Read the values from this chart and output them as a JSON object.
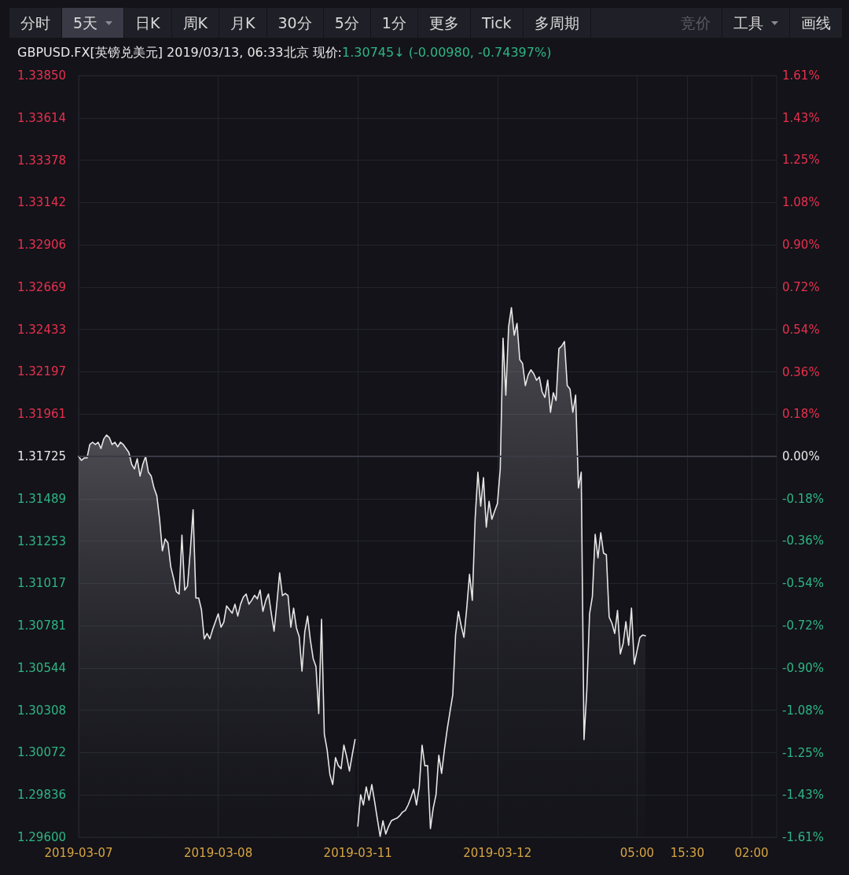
{
  "chart_data": {
    "type": "area",
    "title": "GBPUSD.FX[英镑兑美元]  2019/03/13, 06:33北京 现价:",
    "subtitle": "1.30745↓ (-0.00980, -0.74397%)",
    "annotations": [
      "分时",
      "5天",
      "日K",
      "周K",
      "月K",
      "30分",
      "5分",
      "1分",
      "更多",
      "Tick",
      "多周期",
      "竞价",
      "工具",
      "画线"
    ],
    "categories": [
      "2019-03-07",
      null,
      null,
      null,
      null,
      null,
      null,
      null,
      null,
      null,
      null,
      null,
      null,
      null,
      null,
      null,
      null,
      null,
      null,
      null,
      null,
      null,
      null,
      null,
      null,
      null,
      null,
      null,
      null,
      null,
      null,
      null,
      null,
      null,
      null,
      null,
      null,
      null,
      null,
      null,
      null,
      null,
      null,
      null,
      null,
      null,
      null,
      null,
      null,
      null,
      "2019-03-08",
      null,
      null,
      null,
      null,
      null,
      null,
      null,
      null,
      null,
      null,
      null,
      null,
      null,
      null,
      null,
      null,
      null,
      null,
      null,
      null,
      null,
      null,
      null,
      null,
      null,
      null,
      null,
      null,
      null,
      null,
      null,
      null,
      null,
      null,
      null,
      null,
      null,
      null,
      null,
      null,
      null,
      null,
      null,
      null,
      null,
      null,
      null,
      null,
      null,
      "2019-03-11",
      null,
      null,
      null,
      null,
      null,
      null,
      null,
      null,
      null,
      null,
      null,
      null,
      null,
      null,
      null,
      null,
      null,
      null,
      null,
      null,
      null,
      null,
      null,
      null,
      null,
      null,
      null,
      null,
      null,
      null,
      null,
      null,
      null,
      null,
      null,
      null,
      null,
      null,
      null,
      null,
      null,
      null,
      null,
      null,
      null,
      null,
      null,
      null,
      null,
      "2019-03-12",
      null,
      null,
      null,
      null,
      null,
      null,
      null,
      null,
      null,
      null,
      null,
      null,
      null,
      null,
      null,
      null,
      null,
      null,
      null,
      null,
      null,
      null,
      null,
      null,
      null,
      null,
      null,
      null,
      null,
      null,
      null,
      null,
      null,
      null,
      null,
      null,
      null,
      null,
      null,
      null,
      null,
      null,
      null,
      null,
      null,
      null,
      null,
      null,
      null,
      "05:00",
      null,
      null,
      null,
      null,
      null,
      null,
      null,
      null,
      null,
      null,
      null,
      null,
      null,
      null,
      null,
      null,
      null,
      "15:30",
      null,
      null,
      null,
      null,
      null,
      null,
      null,
      null,
      null,
      null,
      null,
      null,
      null,
      null,
      null,
      null,
      null,
      null,
      null,
      null,
      null,
      null,
      "02:00",
      null,
      null,
      null,
      null,
      null,
      null,
      null,
      null,
      null
    ],
    "series": [
      {
        "color": "#e6e6e6",
        "values": [
          1.31725,
          1.31703,
          1.31716,
          1.31716,
          1.31791,
          1.31804,
          1.31791,
          1.31804,
          1.31769,
          1.31822,
          1.31844,
          1.3183,
          1.31791,
          1.31804,
          1.31778,
          1.31804,
          1.31791,
          1.31769,
          1.31747,
          1.31681,
          1.31655,
          1.31712,
          1.31615,
          1.31681,
          1.31725,
          1.31637,
          1.31615,
          1.31549,
          1.31506,
          1.31374,
          1.31198,
          1.31264,
          1.31242,
          1.3111,
          1.31045,
          1.3097,
          1.30957,
          1.31286,
          1.30979,
          1.31001,
          1.31198,
          1.31427,
          1.30935,
          1.30935,
          1.30869,
          1.30707,
          1.30737,
          1.30707,
          1.30759,
          1.30803,
          1.30847,
          1.30772,
          1.308,
          1.30891,
          1.3087,
          1.3085,
          1.309,
          1.30834,
          1.309,
          1.3094,
          1.30957,
          1.309,
          1.30922,
          1.3095,
          1.3093,
          1.30979,
          1.3086,
          1.3092,
          1.30957,
          1.3085,
          1.3075,
          1.30904,
          1.31075,
          1.30948,
          1.3096,
          1.30948,
          1.30772,
          1.30878,
          1.30768,
          1.3072,
          1.30527,
          1.30746,
          1.30834,
          1.307,
          1.30597,
          1.30553,
          1.3029,
          1.30816,
          1.30175,
          1.30088,
          1.2995,
          1.29894,
          1.30044,
          1.3,
          1.29982,
          1.30114,
          1.3005,
          1.29969,
          1.3006,
          1.30145,
          null,
          null,
          null,
          null,
          null,
          null,
          null,
          null,
          null,
          null,
          null,
          null,
          null,
          null,
          null,
          null,
          null,
          null,
          null,
          null,
          null,
          null,
          null,
          null,
          null,
          null,
          null,
          null,
          null,
          null,
          null,
          null,
          null,
          null,
          null,
          null,
          null,
          null,
          null,
          null,
          null,
          null,
          null,
          null,
          null,
          null,
          null,
          null,
          null,
          null,
          null,
          null,
          null,
          null,
          null,
          null,
          null,
          null,
          null,
          null,
          null,
          null,
          null,
          null,
          null,
          null,
          null,
          null,
          null,
          null,
          null,
          null,
          null,
          null,
          null,
          null,
          null,
          null,
          null,
          null,
          null,
          null,
          null,
          null,
          null,
          null,
          null,
          null,
          null,
          null,
          null,
          null,
          null,
          null,
          null,
          null,
          null,
          null,
          null,
          null,
          null,
          null,
          null,
          null,
          null,
          null,
          null,
          null,
          null,
          null,
          null,
          null,
          null,
          null,
          null,
          null,
          null,
          null,
          null,
          null,
          null,
          null,
          null,
          null,
          null,
          null,
          null,
          null,
          null,
          null,
          null,
          null,
          null,
          null,
          null,
          null,
          null,
          null,
          null,
          null,
          null,
          null,
          null,
          null,
          null,
          null,
          null,
          null,
          null,
          null,
          null
        ]
      },
      {
        "color": "#e6e6e6",
        "values": [
          null,
          null,
          null,
          null,
          null,
          null,
          null,
          null,
          null,
          null,
          null,
          null,
          null,
          null,
          null,
          null,
          null,
          null,
          null,
          null,
          null,
          null,
          null,
          null,
          null,
          null,
          null,
          null,
          null,
          null,
          null,
          null,
          null,
          null,
          null,
          null,
          null,
          null,
          null,
          null,
          null,
          null,
          null,
          null,
          null,
          null,
          null,
          null,
          null,
          null,
          null,
          null,
          null,
          null,
          null,
          null,
          null,
          null,
          null,
          null,
          null,
          null,
          null,
          null,
          null,
          null,
          null,
          null,
          null,
          null,
          null,
          null,
          null,
          null,
          null,
          null,
          null,
          null,
          null,
          null,
          null,
          null,
          null,
          null,
          null,
          null,
          null,
          null,
          null,
          null,
          null,
          null,
          null,
          null,
          null,
          null,
          null,
          null,
          null,
          null,
          1.29662,
          1.29837,
          1.2978,
          1.29881,
          1.29807,
          1.29894,
          1.298,
          1.297,
          1.29605,
          1.29692,
          1.29618,
          1.2966,
          1.29692,
          1.297,
          1.29706,
          1.2972,
          1.2974,
          1.2975,
          1.2978,
          1.2982,
          1.29868,
          1.2978,
          1.29881,
          1.30114,
          1.29999,
          1.29999,
          1.29648,
          1.29763,
          1.29837,
          1.30057,
          1.29956,
          1.30088,
          1.30202,
          1.303,
          1.30395,
          1.30728,
          1.3086,
          1.3078,
          1.30715,
          1.30878,
          1.31067,
          1.30922,
          1.31374,
          1.31637,
          1.31448,
          1.31606,
          1.3133,
          1.31475,
          1.31374,
          1.3142,
          1.31462,
          1.31655,
          1.32384,
          1.32067,
          1.32449,
          1.32555,
          1.32401,
          1.32467,
          1.32265,
          1.32243,
          1.3212,
          1.3218,
          1.32208,
          1.32186,
          1.3215,
          1.32168,
          1.32085,
          1.32054,
          1.32151,
          1.31971,
          1.3208,
          1.32037,
          1.32326,
          1.3234,
          1.32366,
          1.3212,
          1.321,
          1.31971,
          1.32067,
          1.31549,
          1.31637,
          1.30145,
          1.30417,
          1.30847,
          1.30944,
          1.3129,
          1.31159,
          1.31299,
          1.31185,
          1.31176,
          1.30829,
          1.30794,
          1.30737,
          1.30865,
          1.30623,
          1.3068,
          1.30803,
          1.30671,
          1.30878,
          1.30566,
          1.30641,
          1.30715,
          1.30728,
          1.30724,
          null,
          null,
          null,
          null,
          null,
          null,
          null,
          null,
          null,
          null,
          null,
          null,
          null,
          null,
          null,
          null,
          null,
          null,
          null,
          null,
          null,
          null,
          null,
          null,
          null,
          null,
          null,
          null,
          null,
          null,
          null,
          null,
          null,
          null,
          null,
          null,
          null,
          null,
          null,
          null,
          null,
          null,
          null,
          null,
          null,
          null,
          null
        ]
      }
    ],
    "marker": "none",
    "ylim": [
      1.296,
      1.3385
    ],
    "yticks": [
      {
        "value": 1.296,
        "label": "1.29600"
      },
      {
        "value": 1.29836,
        "label": "1.29836"
      },
      {
        "value": 1.30072,
        "label": "1.30072"
      },
      {
        "value": 1.30308,
        "label": "1.30308"
      },
      {
        "value": 1.30544,
        "label": "1.30544"
      },
      {
        "value": 1.30781,
        "label": "1.30781"
      },
      {
        "value": 1.31017,
        "label": "1.31017"
      },
      {
        "value": 1.31253,
        "label": "1.31253"
      },
      {
        "value": 1.31489,
        "label": "1.31489"
      },
      {
        "value": 1.31725,
        "label": "1.31725"
      },
      {
        "value": 1.31961,
        "label": "1.31961"
      },
      {
        "value": 1.32197,
        "label": "1.32197"
      },
      {
        "value": 1.32433,
        "label": "1.32433"
      },
      {
        "value": 1.32669,
        "label": "1.32669"
      },
      {
        "value": 1.32906,
        "label": "1.32906"
      },
      {
        "value": 1.33142,
        "label": "1.33142"
      },
      {
        "value": 1.33378,
        "label": "1.33378"
      },
      {
        "value": 1.33614,
        "label": "1.33614"
      },
      {
        "value": 1.3385,
        "label": "1.33850"
      }
    ],
    "y2lim": [
      -1.613,
      1.613
    ],
    "y2ticks": [
      {
        "value": -1.613,
        "label": "-1.61%"
      },
      {
        "value": -1.434,
        "label": "-1.43%"
      },
      {
        "value": -1.255,
        "label": "-1.25%"
      },
      {
        "value": -1.076,
        "label": "-1.08%"
      },
      {
        "value": -0.897,
        "label": "-0.90%"
      },
      {
        "value": -0.717,
        "label": "-0.72%"
      },
      {
        "value": -0.537,
        "label": "-0.54%"
      },
      {
        "value": -0.358,
        "label": "-0.36%"
      },
      {
        "value": -0.179,
        "label": "-0.18%"
      },
      {
        "value": 0,
        "label": "0.00%"
      },
      {
        "value": 0.179,
        "label": "0.18%"
      },
      {
        "value": 0.358,
        "label": "0.36%"
      },
      {
        "value": 0.537,
        "label": "0.54%"
      },
      {
        "value": 0.717,
        "label": "0.72%"
      },
      {
        "value": 0.897,
        "label": "0.90%"
      },
      {
        "value": 1.076,
        "label": "1.08%"
      },
      {
        "value": 1.255,
        "label": "1.25%"
      },
      {
        "value": 1.434,
        "label": "1.43%"
      },
      {
        "value": 1.613,
        "label": "1.61%"
      }
    ],
    "ref_lines": [
      {
        "axis": "y",
        "value": 1.31725,
        "color": "#3a3a45"
      }
    ],
    "grid": true
  }
}
